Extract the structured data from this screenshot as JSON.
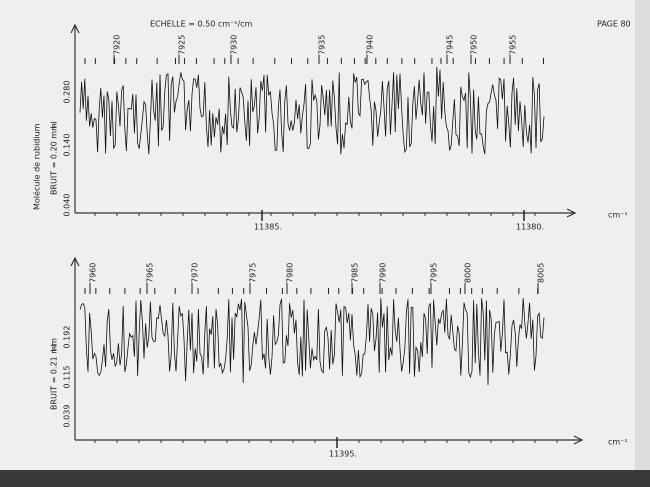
{
  "header": {
    "scale": "ECHELLE = 0.50 cm⁻¹/cm",
    "page": "PAGE 80"
  },
  "molecule": "Molécule de rubidium",
  "panels": [
    {
      "noise": "BRUIT = 0.20 mm",
      "marker": "I-I",
      "y_labels": [
        "0.280",
        "0.140",
        "0.040"
      ],
      "lines": [
        "7920",
        "7925",
        "7930",
        "7935",
        "7940",
        "7945",
        "7950",
        "7955"
      ],
      "x_labels": [
        "11385.",
        "11380."
      ],
      "unit": "cm⁻¹"
    },
    {
      "noise": "BRUIT = 0.21 mm",
      "marker": "I-I",
      "y_labels": [
        "0.192",
        "0.115",
        "0.039"
      ],
      "lines": [
        "7960",
        "7965",
        "7970",
        "7975",
        "7980",
        "7985",
        "7990",
        "7995",
        "8000",
        "8005"
      ],
      "x_labels": [
        "11395."
      ],
      "unit": "cm⁻¹"
    }
  ]
}
